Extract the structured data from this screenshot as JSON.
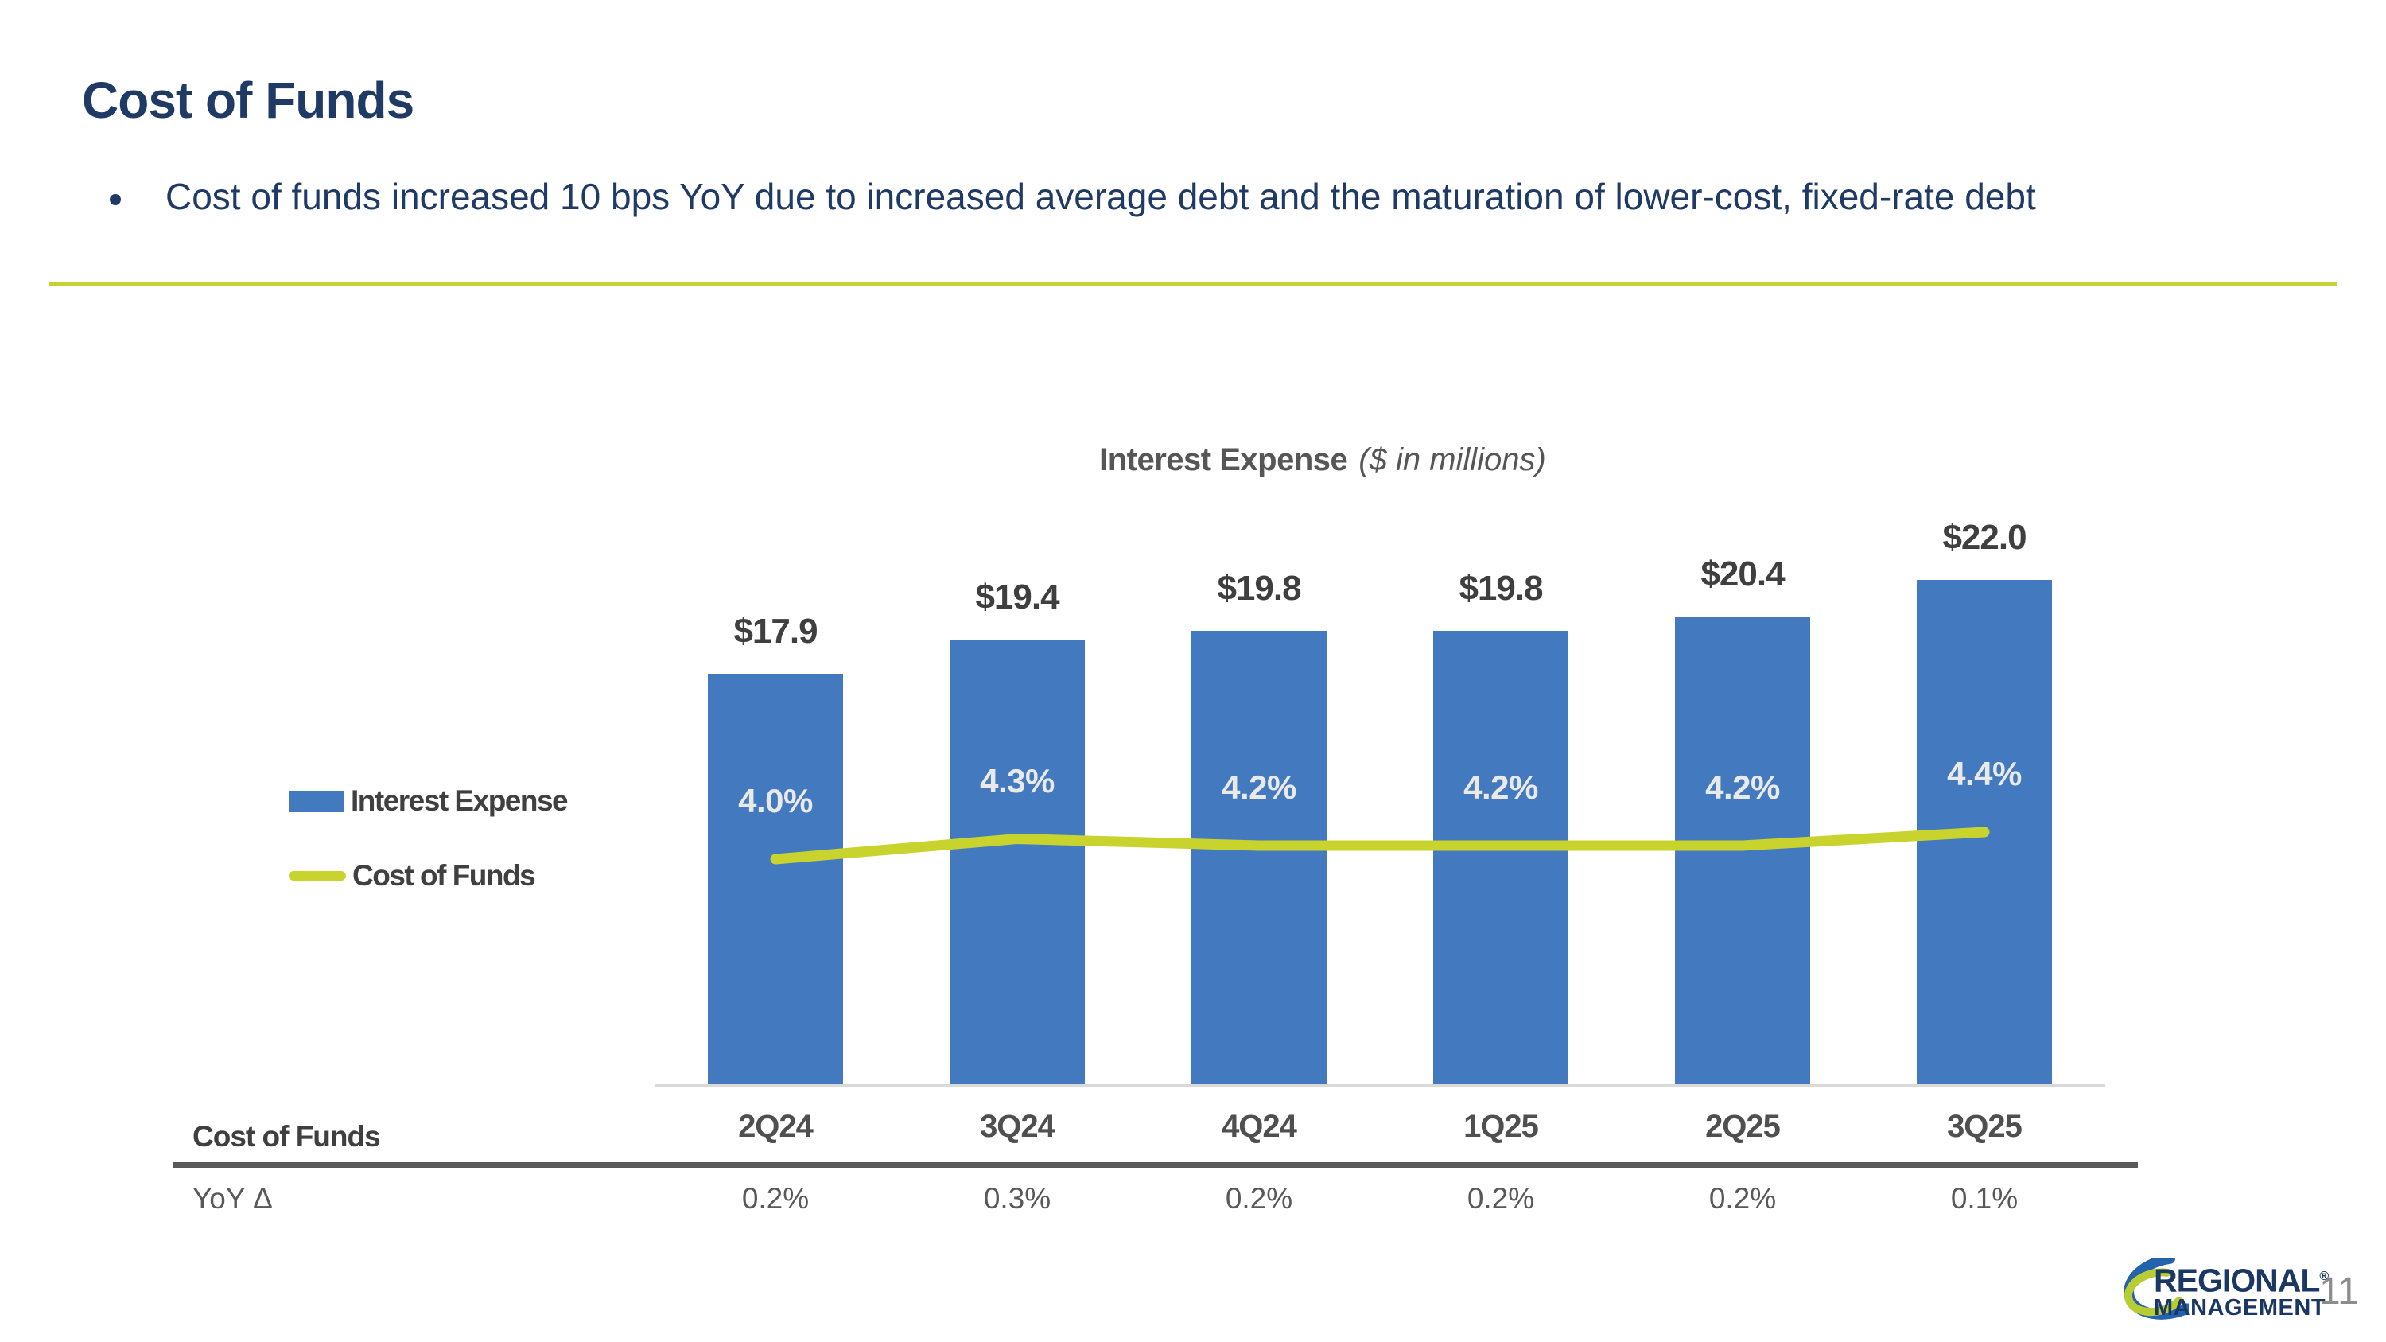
{
  "slide": {
    "title": "Cost of Funds",
    "bullet": "Cost of funds increased 10 bps YoY due to increased average debt and the maturation of lower-cost, fixed-rate debt",
    "page_number": "11"
  },
  "chart_data": {
    "type": "bar",
    "title": "Interest Expense",
    "subtitle": "($ in millions)",
    "categories": [
      "2Q24",
      "3Q24",
      "4Q24",
      "1Q25",
      "2Q25",
      "3Q25"
    ],
    "series": [
      {
        "name": "Interest Expense",
        "type": "bar",
        "values": [
          17.9,
          19.4,
          19.8,
          19.8,
          20.4,
          22.0
        ],
        "labels": [
          "$17.9",
          "$19.4",
          "$19.8",
          "$19.8",
          "$20.4",
          "$22.0"
        ],
        "color": "#4379BE"
      },
      {
        "name": "Cost of Funds",
        "type": "line",
        "axis": "secondary",
        "values": [
          4.0,
          4.3,
          4.2,
          4.2,
          4.2,
          4.4
        ],
        "labels": [
          "4.0%",
          "4.3%",
          "4.2%",
          "4.2%",
          "4.2%",
          "4.4%"
        ],
        "color": "#C9D32D"
      }
    ],
    "bar_axis_range": [
      0,
      24.5
    ],
    "legend_position": "left",
    "grid": false
  },
  "table": {
    "row_header_top": "Cost of Funds",
    "columns": [
      "2Q24",
      "3Q24",
      "4Q24",
      "1Q25",
      "2Q25",
      "3Q25"
    ],
    "row_header_bottom": "YoY Δ",
    "yoy_values": [
      "0.2%",
      "0.3%",
      "0.2%",
      "0.2%",
      "0.2%",
      "0.1%"
    ]
  },
  "logo": {
    "line1": "REGIONAL",
    "registered": "®",
    "line2": "MANAGEMENT"
  },
  "colors": {
    "navy_text": "#1F3A64",
    "bar_blue": "#4379BE",
    "line_green": "#C9D32D",
    "divider_green": "#C6D232",
    "gray_text": "#595959",
    "axis_gray": "#D9D9D9"
  }
}
